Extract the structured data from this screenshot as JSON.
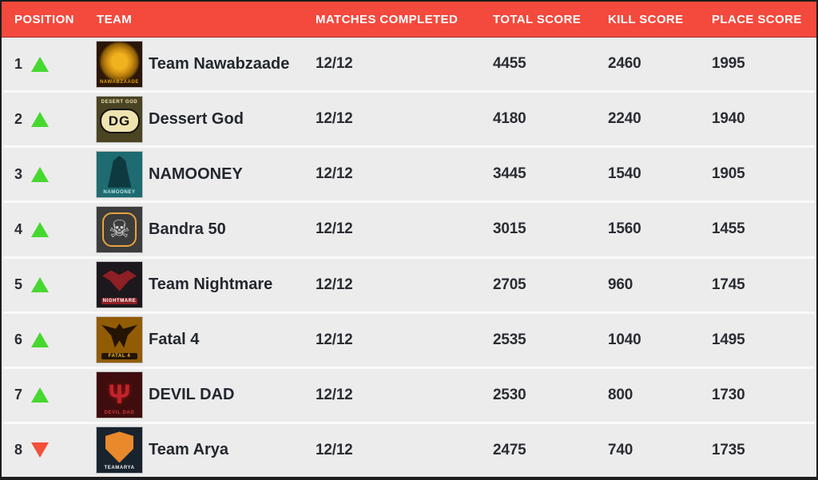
{
  "header": {
    "columns": [
      "POSITION",
      "TEAM",
      "MATCHES COMPLETED",
      "TOTAL SCORE",
      "KILL SCORE",
      "PLACE SCORE"
    ]
  },
  "colors": {
    "header_bg": "#f4493d",
    "header_text": "#ffffff",
    "frame": "#1d1d1d",
    "row_bg": "#ececec",
    "divider": "#fafafa",
    "up_arrow": "#47d830",
    "down_arrow": "#f4503c",
    "name_text": "#23272e",
    "number_text": "#2a2d33"
  },
  "rows": [
    {
      "position": "1",
      "trend": "up",
      "team": "Team Nawabzaade",
      "matches": "12/12",
      "total": "4455",
      "kill": "2460",
      "place": "1995",
      "logo": {
        "kind": "lion",
        "bg": "#2b1607",
        "accent": "#c98a10",
        "glyph": "",
        "caption": "NAWABZAADE",
        "caption_color": "#e0a50f",
        "caption_bg": "",
        "caption_pos": "bottom"
      }
    },
    {
      "position": "2",
      "trend": "up",
      "team": "Dessert God",
      "matches": "12/12",
      "total": "4180",
      "kill": "2240",
      "place": "1940",
      "logo": {
        "kind": "monogram",
        "bg": "#4a4423",
        "accent": "#efe3b0",
        "glyph": "",
        "monogram": "DG",
        "caption": "DESERT GOD",
        "caption_color": "#efe3b0",
        "caption_bg": "",
        "caption_pos": "top"
      }
    },
    {
      "position": "3",
      "trend": "up",
      "team": "NAMOONEY",
      "matches": "12/12",
      "total": "3445",
      "kill": "1540",
      "place": "1905",
      "logo": {
        "kind": "hood",
        "bg": "#1f6b72",
        "accent": "#0e3a3f",
        "glyph": "",
        "caption": "NAMOONEY",
        "caption_color": "#bfe8e3",
        "caption_bg": "",
        "caption_pos": "bottom"
      }
    },
    {
      "position": "4",
      "trend": "up",
      "team": "Bandra 50",
      "matches": "12/12",
      "total": "3015",
      "kill": "1560",
      "place": "1455",
      "logo": {
        "kind": "skull",
        "bg": "#3c3c3c",
        "accent": "#d8d8d8",
        "glyph": "☠",
        "caption": "",
        "caption_color": "#e8a33d",
        "caption_bg": "",
        "caption_pos": "bottom"
      }
    },
    {
      "position": "5",
      "trend": "up",
      "team": "Team Nightmare",
      "matches": "12/12",
      "total": "2705",
      "kill": "960",
      "place": "1745",
      "logo": {
        "kind": "bat",
        "bg": "#1d181d",
        "accent": "#8e1f24",
        "glyph": "",
        "caption": "NIGHTMARE",
        "caption_color": "#ffffff",
        "caption_bg": "#8e1f24",
        "caption_pos": "bottom"
      }
    },
    {
      "position": "6",
      "trend": "up",
      "team": "Fatal 4",
      "matches": "12/12",
      "total": "2535",
      "kill": "1040",
      "place": "1495",
      "logo": {
        "kind": "eagle",
        "bg": "#925c05",
        "accent": "#241404",
        "glyph": "",
        "caption": "FATAL 4",
        "caption_color": "#f0c23c",
        "caption_bg": "#241404",
        "caption_pos": "bottom"
      }
    },
    {
      "position": "7",
      "trend": "up",
      "team": "DEVIL DAD",
      "matches": "12/12",
      "total": "2530",
      "kill": "800",
      "place": "1730",
      "logo": {
        "kind": "trident",
        "bg": "#3f0d0d",
        "accent": "#c3232a",
        "glyph": "Ψ",
        "caption": "DEVIL DAD",
        "caption_color": "#d2373d",
        "caption_bg": "",
        "caption_pos": "bottom"
      }
    },
    {
      "position": "8",
      "trend": "down",
      "team": "Team Arya",
      "matches": "12/12",
      "total": "2475",
      "kill": "740",
      "place": "1735",
      "logo": {
        "kind": "shield",
        "bg": "#18232e",
        "accent": "#e8892b",
        "glyph": "",
        "caption": "TEAMARYA",
        "caption_color": "#f2f2f2",
        "caption_bg": "",
        "caption_pos": "bottom"
      }
    }
  ]
}
